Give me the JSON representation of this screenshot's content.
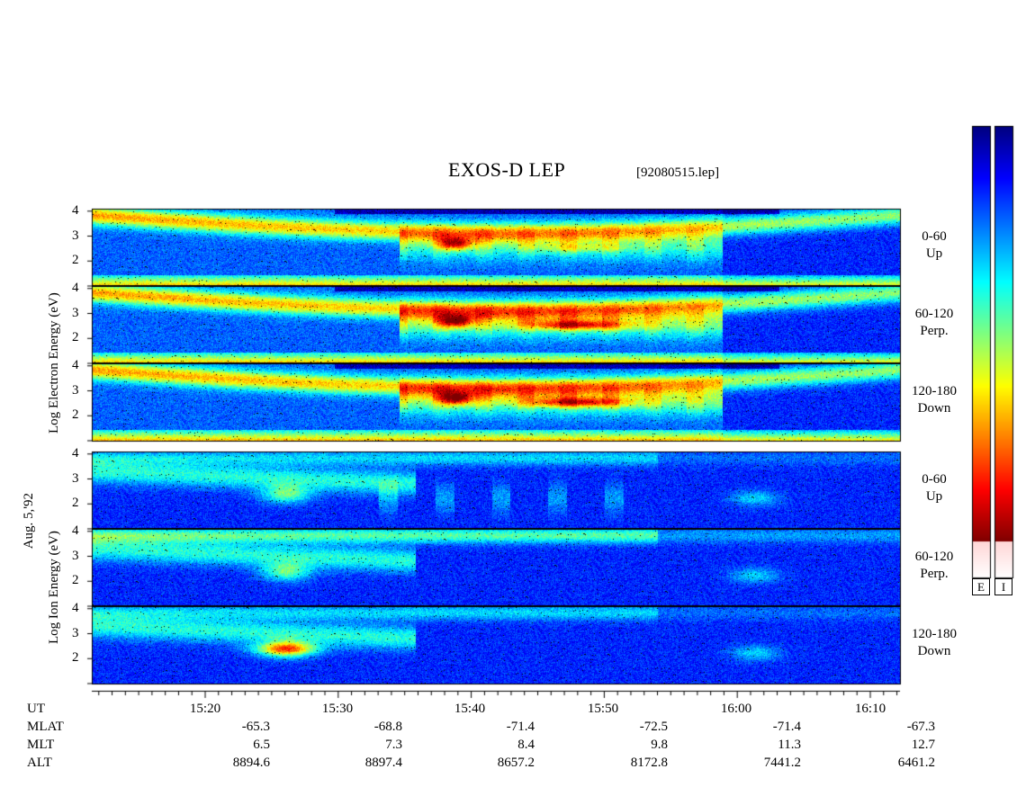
{
  "title": "EXOS-D LEP",
  "file": "[92080515.lep]",
  "date_label": "Aug. 5,'92",
  "electron_group": {
    "ylabel": "Log  Electron  Energy  (eV)"
  },
  "ion_group": {
    "ylabel": "Log   Ion   Energy  (eV)"
  },
  "panels": [
    {
      "label_line1": "0-60",
      "label_line2": "Up"
    },
    {
      "label_line1": "60-120",
      "label_line2": "Perp."
    },
    {
      "label_line1": "120-180",
      "label_line2": "Down"
    },
    {
      "label_line1": "0-60",
      "label_line2": "Up"
    },
    {
      "label_line1": "60-120",
      "label_line2": "Perp."
    },
    {
      "label_line1": "120-180",
      "label_line2": "Down"
    }
  ],
  "colorbars": {
    "labels": [
      "E",
      "I"
    ]
  },
  "chart_data": {
    "type": "heatmap",
    "title": "EXOS-D LEP",
    "x_axis": {
      "type": "time",
      "range": [
        "15:12",
        "16:13"
      ],
      "tick_labels": [
        "15:20",
        "15:30",
        "15:40",
        "15:50",
        "16:00",
        "16:10"
      ]
    },
    "y_axis": {
      "scale": "log10 energy (eV)",
      "range": [
        1,
        4.1
      ],
      "tick_labels": [
        "4",
        "3",
        "2"
      ]
    },
    "orbit_table": {
      "rows": [
        {
          "name": "UT",
          "values": [
            "15:20",
            "15:30",
            "15:40",
            "15:50",
            "16:00",
            "16:10"
          ]
        },
        {
          "name": "MLAT",
          "values": [
            "-65.3",
            "-68.8",
            "-71.4",
            "-72.5",
            "-71.4",
            "-67.3"
          ]
        },
        {
          "name": "MLT",
          "values": [
            "6.5",
            "7.3",
            "8.4",
            "9.8",
            "11.3",
            "12.7"
          ]
        },
        {
          "name": "ALT",
          "values": [
            "8894.6",
            "8897.4",
            "8657.2",
            "8172.8",
            "7441.2",
            "6461.2"
          ]
        }
      ]
    },
    "series": [
      {
        "name": "Electron 0-60 Up"
      },
      {
        "name": "Electron 60-120 Perp."
      },
      {
        "name": "Electron 120-180 Down"
      },
      {
        "name": "Ion 0-60 Up"
      },
      {
        "name": "Ion 60-120 Perp."
      },
      {
        "name": "Ion 120-180 Down"
      }
    ]
  }
}
